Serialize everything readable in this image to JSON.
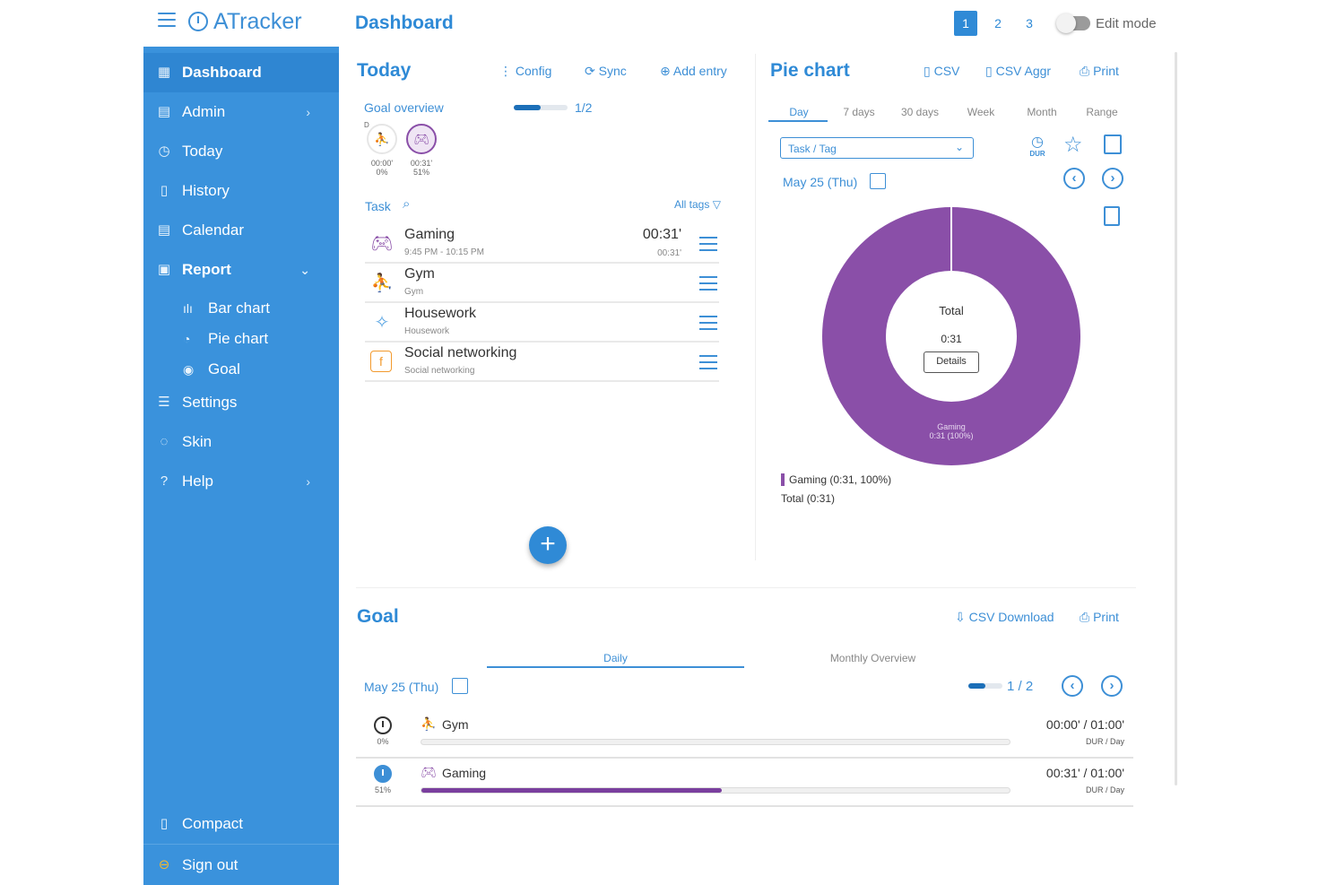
{
  "brand": {
    "name": "ATracker"
  },
  "header": {
    "title": "Dashboard",
    "pages": [
      "1",
      "2",
      "3"
    ],
    "active_page": "1",
    "edit_mode_label": "Edit mode"
  },
  "sidebar": {
    "items": [
      {
        "label": "Dashboard",
        "icon": "grid-icon"
      },
      {
        "label": "Admin",
        "icon": "admin-icon"
      },
      {
        "label": "Today",
        "icon": "clock-icon"
      },
      {
        "label": "History",
        "icon": "history-icon"
      },
      {
        "label": "Calendar",
        "icon": "calendar-icon"
      },
      {
        "label": "Report",
        "icon": "report-icon"
      },
      {
        "label": "Settings",
        "icon": "sliders-icon"
      },
      {
        "label": "Skin",
        "icon": "palette-icon"
      },
      {
        "label": "Help",
        "icon": "help-icon"
      }
    ],
    "report_sub": [
      {
        "label": "Bar chart",
        "icon": "bar-chart-icon"
      },
      {
        "label": "Pie chart",
        "icon": "pie-chart-icon"
      },
      {
        "label": "Goal",
        "icon": "goal-icon"
      }
    ],
    "compact_label": "Compact",
    "signout_label": "Sign out"
  },
  "today": {
    "title": "Today",
    "config_label": "Config",
    "sync_label": "Sync",
    "add_entry_label": "Add entry",
    "goal_overview_label": "Goal overview",
    "goal_progress_text": "1/2",
    "goal_progress": 0.5,
    "goal_marker": "D",
    "goals": [
      {
        "time": "00:00'",
        "pct": "0%"
      },
      {
        "time": "00:31'",
        "pct": "51%"
      }
    ],
    "task_header": "Task",
    "all_tags_label": "All tags",
    "tasks": [
      {
        "name": "Gaming",
        "sub": "9:45 PM - 10:15 PM",
        "time": "00:31'",
        "time2": "00:31'"
      },
      {
        "name": "Gym",
        "sub": "Gym",
        "time": "",
        "time2": ""
      },
      {
        "name": "Housework",
        "sub": "Housework",
        "time": "",
        "time2": ""
      },
      {
        "name": "Social networking",
        "sub": "Social networking",
        "time": "",
        "time2": ""
      }
    ]
  },
  "pie": {
    "title": "Pie chart",
    "csv_label": "CSV",
    "csv_aggr_label": "CSV Aggr",
    "print_label": "Print",
    "tabs": [
      "Day",
      "7 days",
      "30 days",
      "Week",
      "Month",
      "Range"
    ],
    "active_tab": "Day",
    "select_value": "Task / Tag",
    "dur_label": "DUR",
    "date": "May 25 (Thu)",
    "center_title": "Total",
    "center_value": "0:31",
    "details_label": "Details",
    "slice_label_1": "Gaming",
    "slice_label_2": "0:31 (100%)",
    "legend_entry": "Gaming (0:31, 100%)",
    "legend_total": "Total (0:31)",
    "accent": "#8a4fa8"
  },
  "chart_data": {
    "type": "pie",
    "categories": [
      "Gaming"
    ],
    "values": [
      100
    ],
    "labels": [
      "0:31 (100%)"
    ],
    "title": "",
    "center_title": "Total",
    "center_value": "0:31"
  },
  "goal": {
    "title": "Goal",
    "csv_download_label": "CSV Download",
    "print_label": "Print",
    "tabs": [
      "Daily",
      "Monthly Overview"
    ],
    "active_tab": "Daily",
    "date": "May 25 (Thu)",
    "progress_text": "1 / 2",
    "progress": 0.5,
    "rows": [
      {
        "name": "Gym",
        "pct": "0%",
        "value": "00:00' / 01:00'",
        "unit": "DUR / Day",
        "progress": 0
      },
      {
        "name": "Gaming",
        "pct": "51%",
        "value": "00:31' / 01:00'",
        "unit": "DUR / Day",
        "progress": 0.51
      }
    ]
  }
}
